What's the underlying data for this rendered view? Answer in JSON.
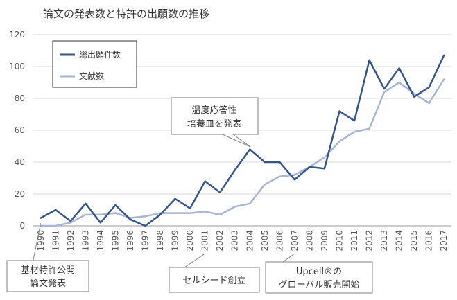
{
  "chart_data": {
    "type": "line",
    "title": "論文の発表数と特許の出願数の推移",
    "xlabel": "",
    "ylabel": "",
    "ylim": [
      0,
      120
    ],
    "yticks": [
      "0",
      "20",
      "40",
      "60",
      "80",
      "100",
      "120"
    ],
    "grid": true,
    "legend_position": "top-left",
    "x": [
      "1990",
      "1991",
      "1992",
      "1993",
      "1994",
      "1995",
      "1996",
      "1997",
      "1998",
      "1999",
      "2000",
      "2001",
      "2002",
      "2003",
      "2004",
      "2005",
      "2006",
      "2007",
      "2008",
      "2009",
      "2010",
      "2011",
      "2012",
      "2013",
      "2014",
      "2015",
      "2016",
      "2017"
    ],
    "series": [
      {
        "name": "総出願件数",
        "color": "#34548c",
        "values": [
          5,
          10,
          3,
          14,
          2,
          13,
          4,
          0,
          7,
          17,
          11,
          28,
          21,
          35,
          48,
          40,
          40,
          29,
          37,
          36,
          72,
          66,
          104,
          86,
          99,
          81,
          87,
          107
        ]
      },
      {
        "name": "文献数",
        "color": "#a7b4d4",
        "values": [
          0,
          0,
          2,
          7,
          7,
          8,
          5,
          6,
          8,
          8,
          8,
          9,
          7,
          12,
          14,
          26,
          31,
          32,
          37,
          43,
          53,
          59,
          61,
          84,
          90,
          83,
          77,
          92
        ]
      }
    ],
    "annotations": [
      {
        "text": "温度応答性\n培養皿を発表",
        "x": "2004",
        "style": "callout"
      },
      {
        "text": "基材特許公開\n論文発表",
        "x": "1990",
        "style": "box"
      },
      {
        "text": "セルシード創立",
        "x": "2001",
        "style": "box"
      },
      {
        "text": "Upcell®の\nグローバル販売開始",
        "x": "2007",
        "style": "box"
      }
    ]
  }
}
